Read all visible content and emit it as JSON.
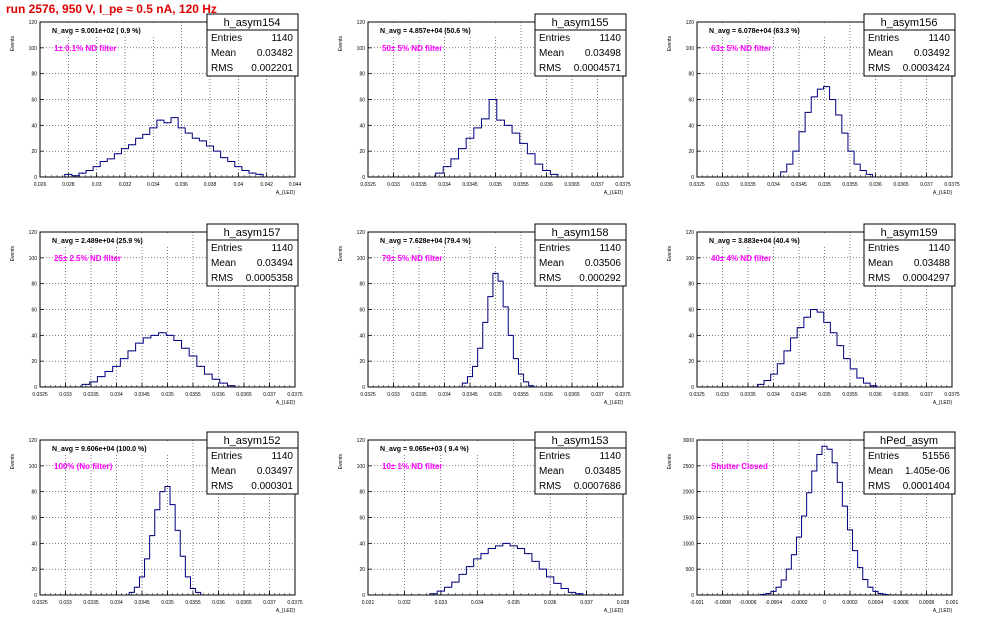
{
  "page": {
    "title": "run 2576,   950 V, I_pe ≈ 0.5 nA, 120 Hz"
  },
  "colors": {
    "title": "#e00000",
    "histogram": "#00007f",
    "annotation": "#ff00ff",
    "frame": "#000000",
    "grid": "#000000"
  },
  "stat_labels": {
    "entries": "Entries",
    "mean": "Mean",
    "rms": "RMS"
  },
  "chart_data": [
    {
      "type": "histogram",
      "title": "h_asym154",
      "ylabel": "Events",
      "xlabel": "A_{LED}",
      "navg": "N_avg = 9.001e+02 ( 0.9 %)",
      "note": "1± 0.1% ND filter",
      "stats": {
        "entries": "1140",
        "mean": "0.03482",
        "rms": "0.002201"
      },
      "xlim": [
        0.026,
        0.044
      ],
      "ylim": [
        0,
        120
      ],
      "xticks": [
        "0.026",
        "0.028",
        "0.03",
        "0.032",
        "0.034",
        "0.036",
        "0.038",
        "0.04",
        "0.042",
        "0.044"
      ],
      "yticks": [
        "0",
        "20",
        "40",
        "60",
        "80",
        "100",
        "120"
      ],
      "x": [
        0.028,
        0.0285,
        0.029,
        0.0295,
        0.03,
        0.0305,
        0.031,
        0.0315,
        0.032,
        0.0325,
        0.033,
        0.0335,
        0.034,
        0.0345,
        0.035,
        0.0355,
        0.036,
        0.0365,
        0.037,
        0.0375,
        0.038,
        0.0385,
        0.039,
        0.0395,
        0.04,
        0.0405,
        0.041,
        0.0415
      ],
      "values": [
        2,
        1,
        3,
        5,
        8,
        12,
        14,
        18,
        22,
        25,
        30,
        33,
        38,
        44,
        42,
        46,
        38,
        34,
        30,
        28,
        24,
        20,
        15,
        12,
        8,
        5,
        3,
        2
      ]
    },
    {
      "type": "histogram",
      "title": "h_asym155",
      "ylabel": "Events",
      "xlabel": "A_{LED}",
      "navg": "N_avg = 4.857e+04 (50.6 %)",
      "note": "50± 5% ND filter",
      "stats": {
        "entries": "1140",
        "mean": "0.03498",
        "rms": "0.0004571"
      },
      "xlim": [
        0.0325,
        0.0375
      ],
      "ylim": [
        0,
        120
      ],
      "xticks": [
        "0.0325",
        "0.033",
        "0.0335",
        "0.034",
        "0.0345",
        "0.035",
        "0.0355",
        "0.036",
        "0.0365",
        "0.037",
        "0.0375"
      ],
      "yticks": [
        "0",
        "20",
        "40",
        "60",
        "80",
        "100",
        "120"
      ],
      "x": [
        0.0339,
        0.03405,
        0.0342,
        0.03435,
        0.0345,
        0.03465,
        0.0348,
        0.03495,
        0.0351,
        0.03525,
        0.0354,
        0.03555,
        0.0357,
        0.03585,
        0.036,
        0.03615
      ],
      "values": [
        3,
        8,
        14,
        22,
        30,
        38,
        45,
        60,
        44,
        40,
        34,
        26,
        18,
        10,
        5,
        2
      ]
    },
    {
      "type": "histogram",
      "title": "h_asym156",
      "ylabel": "Events",
      "xlabel": "A_{LED}",
      "navg": "N_avg = 6.078e+04 (63.3 %)",
      "note": "63± 5% ND filter",
      "stats": {
        "entries": "1140",
        "mean": "0.03492",
        "rms": "0.0003424"
      },
      "xlim": [
        0.0325,
        0.0375
      ],
      "ylim": [
        0,
        120
      ],
      "xticks": [
        "0.0325",
        "0.033",
        "0.0335",
        "0.034",
        "0.0345",
        "0.035",
        "0.0355",
        "0.036",
        "0.0365",
        "0.037",
        "0.0375"
      ],
      "yticks": [
        "0",
        "20",
        "40",
        "60",
        "80",
        "100",
        "120"
      ],
      "x": [
        0.0342,
        0.03432,
        0.03444,
        0.03456,
        0.03468,
        0.0348,
        0.03492,
        0.03504,
        0.03516,
        0.03528,
        0.0354,
        0.03552,
        0.03564,
        0.03576,
        0.03588
      ],
      "values": [
        4,
        10,
        20,
        35,
        50,
        62,
        68,
        70,
        60,
        48,
        34,
        20,
        10,
        5,
        2
      ]
    },
    {
      "type": "histogram",
      "title": "h_asym157",
      "ylabel": "Events",
      "xlabel": "A_{LED}",
      "navg": "N_avg = 2.489e+04 (25.9 %)",
      "note": "25± 2.5% ND filter",
      "stats": {
        "entries": "1140",
        "mean": "0.03494",
        "rms": "0.0005358"
      },
      "xlim": [
        0.0325,
        0.0375
      ],
      "ylim": [
        0,
        120
      ],
      "xticks": [
        "0.0325",
        "0.033",
        "0.0335",
        "0.034",
        "0.0345",
        "0.035",
        "0.0355",
        "0.036",
        "0.0365",
        "0.037",
        "0.0375"
      ],
      "yticks": [
        "0",
        "20",
        "40",
        "60",
        "80",
        "100",
        "120"
      ],
      "x": [
        0.0334,
        0.03355,
        0.0337,
        0.03385,
        0.034,
        0.03415,
        0.0343,
        0.03445,
        0.0346,
        0.03475,
        0.0349,
        0.03505,
        0.0352,
        0.03535,
        0.0355,
        0.03565,
        0.0358,
        0.03595,
        0.0361,
        0.03625
      ],
      "values": [
        2,
        4,
        8,
        12,
        16,
        22,
        28,
        34,
        38,
        40,
        42,
        40,
        36,
        30,
        24,
        16,
        10,
        6,
        3,
        1
      ]
    },
    {
      "type": "histogram",
      "title": "h_asym158",
      "ylabel": "Events",
      "xlabel": "A_{LED}",
      "navg": "N_avg = 7.628e+04 (79.4 %)",
      "note": "79± 5% ND filter",
      "stats": {
        "entries": "1140",
        "mean": "0.03506",
        "rms": "0.000292"
      },
      "xlim": [
        0.0325,
        0.0375
      ],
      "ylim": [
        0,
        120
      ],
      "xticks": [
        "0.0325",
        "0.033",
        "0.0335",
        "0.034",
        "0.0345",
        "0.035",
        "0.0355",
        "0.036",
        "0.0365",
        "0.037",
        "0.0375"
      ],
      "yticks": [
        "0",
        "20",
        "40",
        "60",
        "80",
        "100",
        "120"
      ],
      "x": [
        0.0344,
        0.0345,
        0.0346,
        0.0347,
        0.0348,
        0.0349,
        0.035,
        0.0351,
        0.0352,
        0.0353,
        0.0354,
        0.0355,
        0.0356,
        0.0357
      ],
      "values": [
        3,
        8,
        16,
        30,
        50,
        70,
        88,
        82,
        62,
        40,
        22,
        10,
        4,
        1
      ]
    },
    {
      "type": "histogram",
      "title": "h_asym159",
      "ylabel": "Events",
      "xlabel": "A_{LED}",
      "navg": "N_avg = 3.883e+04 (40.4 %)",
      "note": "40± 4% ND filter",
      "stats": {
        "entries": "1140",
        "mean": "0.03488",
        "rms": "0.0004297"
      },
      "xlim": [
        0.0325,
        0.0375
      ],
      "ylim": [
        0,
        120
      ],
      "xticks": [
        "0.0325",
        "0.033",
        "0.0335",
        "0.034",
        "0.0345",
        "0.035",
        "0.0355",
        "0.036",
        "0.0365",
        "0.037",
        "0.0375"
      ],
      "yticks": [
        "0",
        "20",
        "40",
        "60",
        "80",
        "100",
        "120"
      ],
      "x": [
        0.03375,
        0.03388,
        0.03401,
        0.03414,
        0.03427,
        0.0344,
        0.03453,
        0.03466,
        0.03479,
        0.03492,
        0.03505,
        0.03518,
        0.03531,
        0.03544,
        0.03557,
        0.0357,
        0.03583,
        0.03596
      ],
      "values": [
        2,
        5,
        10,
        18,
        28,
        38,
        46,
        54,
        60,
        58,
        50,
        42,
        32,
        22,
        14,
        7,
        3,
        1
      ]
    },
    {
      "type": "histogram",
      "title": "h_asym152",
      "ylabel": "Events",
      "xlabel": "A_{LED}",
      "navg": "N_avg = 9.606e+04 (100.0 %)",
      "note": "100% (No filter)",
      "stats": {
        "entries": "1140",
        "mean": "0.03497",
        "rms": "0.000301"
      },
      "xlim": [
        0.0325,
        0.0375
      ],
      "ylim": [
        0,
        120
      ],
      "xticks": [
        "0.0325",
        "0.033",
        "0.0335",
        "0.034",
        "0.0345",
        "0.035",
        "0.0355",
        "0.036",
        "0.0365",
        "0.037",
        "0.0375"
      ],
      "yticks": [
        "0",
        "20",
        "40",
        "60",
        "80",
        "100",
        "120"
      ],
      "x": [
        0.0343,
        0.0344,
        0.0345,
        0.0346,
        0.0347,
        0.0348,
        0.0349,
        0.035,
        0.0351,
        0.0352,
        0.0353,
        0.0354,
        0.0355,
        0.0356
      ],
      "values": [
        2,
        6,
        14,
        28,
        46,
        66,
        80,
        84,
        70,
        50,
        30,
        14,
        5,
        2
      ]
    },
    {
      "type": "histogram",
      "title": "h_asym153",
      "ylabel": "Events",
      "xlabel": "A_{LED}",
      "navg": "N_avg = 9.065e+03 ( 9.4 %)",
      "note": "10± 1% ND filter",
      "stats": {
        "entries": "1140",
        "mean": "0.03485",
        "rms": "0.0007686"
      },
      "xlim": [
        0.031,
        0.038
      ],
      "ylim": [
        0,
        120
      ],
      "xticks": [
        "0.031",
        "0.032",
        "0.033",
        "0.034",
        "0.035",
        "0.036",
        "0.037",
        "0.038"
      ],
      "yticks": [
        "0",
        "20",
        "40",
        "60",
        "80",
        "100",
        "120"
      ],
      "x": [
        0.0328,
        0.033,
        0.0332,
        0.0334,
        0.0336,
        0.0338,
        0.034,
        0.0342,
        0.0344,
        0.0346,
        0.0348,
        0.035,
        0.0352,
        0.0354,
        0.0356,
        0.0358,
        0.036,
        0.0362,
        0.0364,
        0.0366,
        0.0368
      ],
      "values": [
        1,
        3,
        6,
        10,
        16,
        22,
        28,
        32,
        36,
        38,
        40,
        38,
        36,
        32,
        26,
        20,
        14,
        9,
        5,
        2,
        1
      ]
    },
    {
      "type": "histogram",
      "title": "hPed_asym",
      "ylabel": "Events",
      "xlabel": "A_{LED}",
      "navg": "",
      "note": "Shutter Closed",
      "stats": {
        "entries": "51556",
        "mean": "1.405e-06",
        "rms": "0.0001404"
      },
      "xlim": [
        -0.001,
        0.001
      ],
      "ylim": [
        0,
        3000
      ],
      "xticks": [
        "-0.001",
        "-0.0008",
        "-0.0006",
        "-0.0004",
        "-0.0002",
        "0",
        "0.0002",
        "0.0004",
        "0.0006",
        "0.0008",
        "0.001"
      ],
      "yticks": [
        "0",
        "500",
        "1000",
        "1500",
        "2000",
        "2500",
        "3000"
      ],
      "x": [
        -0.00048,
        -0.00044,
        -0.0004,
        -0.00036,
        -0.00032,
        -0.00028,
        -0.00024,
        -0.0002,
        -0.00016,
        -0.00012,
        -8e-05,
        -4e-05,
        0,
        4e-05,
        8e-05,
        0.00012,
        0.00016,
        0.0002,
        0.00024,
        0.00028,
        0.00032,
        0.00036,
        0.0004,
        0.00044,
        0.00048
      ],
      "values": [
        10,
        30,
        70,
        150,
        290,
        500,
        780,
        1120,
        1530,
        1980,
        2400,
        2720,
        2880,
        2820,
        2560,
        2180,
        1720,
        1260,
        860,
        530,
        300,
        150,
        70,
        30,
        10
      ]
    }
  ]
}
